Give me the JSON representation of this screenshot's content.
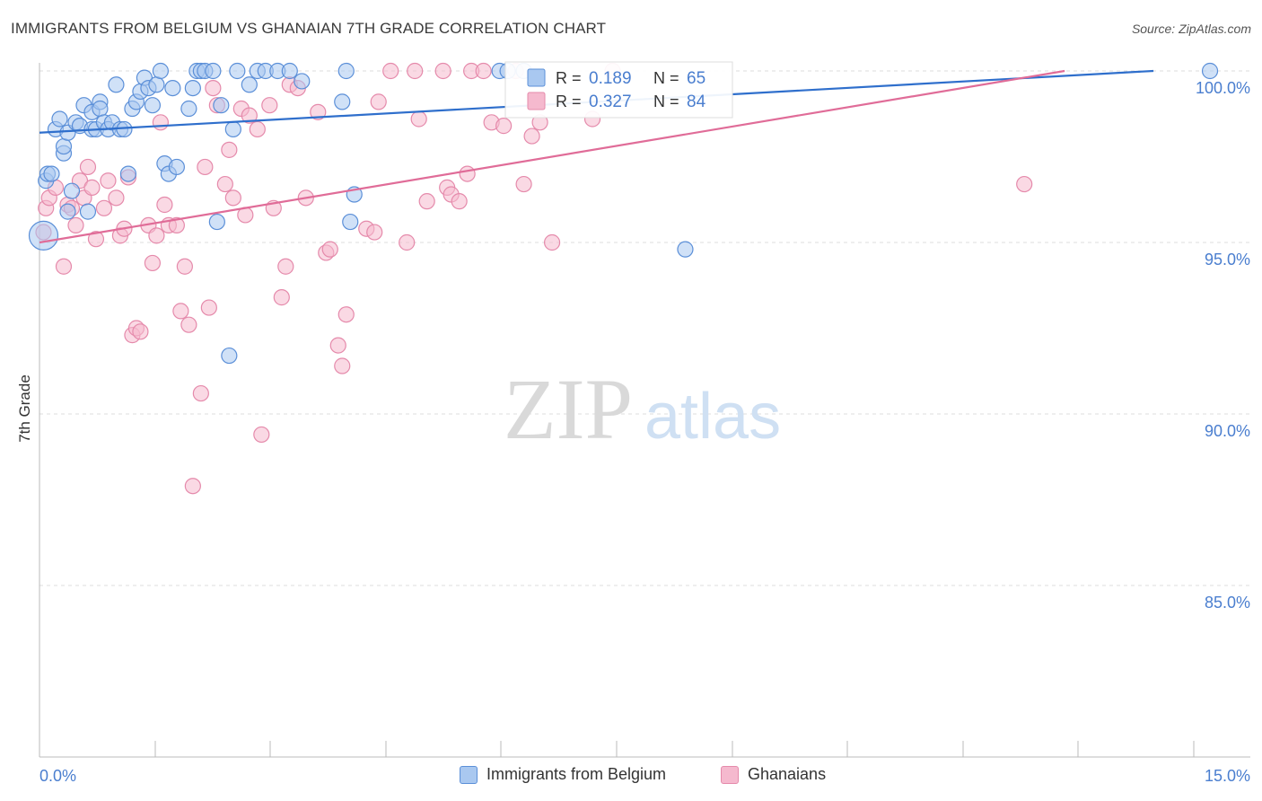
{
  "title": "IMMIGRANTS FROM BELGIUM VS GHANAIAN 7TH GRADE CORRELATION CHART",
  "source": "Source: ZipAtlas.com",
  "watermark": {
    "zip": "ZIP",
    "atlas": "atlas"
  },
  "colors": {
    "blue_fill": "#a9c8f0",
    "blue_stroke": "#5b8fd8",
    "blue_line": "#2f6fcc",
    "pink_fill": "#f5b9ce",
    "pink_stroke": "#e58aab",
    "pink_line": "#e06c98",
    "axis_label": "#4a7ecf",
    "grid": "#dddddd"
  },
  "chart_data": {
    "type": "scatter",
    "title": "IMMIGRANTS FROM BELGIUM VS GHANAIAN 7TH GRADE CORRELATION CHART",
    "xlabel": "",
    "ylabel": "7th Grade",
    "xlim": [
      0,
      15
    ],
    "ylim": [
      80.5,
      100.3
    ],
    "x_tick_labels": [
      {
        "value": 0,
        "label": "0.0%"
      },
      {
        "value": 15,
        "label": "15.0%"
      }
    ],
    "y_ticks": [
      {
        "value": 100,
        "label": "100.0%"
      },
      {
        "value": 95,
        "label": "95.0%"
      },
      {
        "value": 90,
        "label": "90.0%"
      },
      {
        "value": 85,
        "label": "85.0%"
      }
    ],
    "legend_box": {
      "rows": [
        {
          "r_label": "R = ",
          "r_value": "0.189",
          "n_label": "N = ",
          "n_value": "65",
          "series": "blue"
        },
        {
          "r_label": "R = ",
          "r_value": "0.327",
          "n_label": "N = ",
          "n_value": "84",
          "series": "pink"
        }
      ]
    },
    "series": [
      {
        "name": "Immigrants from Belgium",
        "color": "blue",
        "trend": {
          "x0": 0,
          "y0": 98.2,
          "x1": 13.8,
          "y1": 100.0
        },
        "points": [
          [
            0.05,
            95.2
          ],
          [
            0.08,
            96.8
          ],
          [
            0.1,
            97.0
          ],
          [
            0.15,
            97.0
          ],
          [
            0.2,
            98.3
          ],
          [
            0.25,
            98.6
          ],
          [
            0.3,
            97.6
          ],
          [
            0.3,
            97.8
          ],
          [
            0.35,
            98.2
          ],
          [
            0.35,
            95.9
          ],
          [
            0.4,
            96.5
          ],
          [
            0.45,
            98.5
          ],
          [
            0.5,
            98.4
          ],
          [
            0.55,
            99.0
          ],
          [
            0.6,
            95.9
          ],
          [
            0.65,
            98.3
          ],
          [
            0.65,
            98.8
          ],
          [
            0.7,
            98.3
          ],
          [
            0.75,
            99.1
          ],
          [
            0.75,
            98.9
          ],
          [
            0.8,
            98.5
          ],
          [
            0.85,
            98.3
          ],
          [
            0.9,
            98.5
          ],
          [
            0.95,
            99.6
          ],
          [
            1.0,
            98.3
          ],
          [
            1.05,
            98.3
          ],
          [
            1.1,
            97.0
          ],
          [
            1.15,
            98.9
          ],
          [
            1.2,
            99.1
          ],
          [
            1.25,
            99.4
          ],
          [
            1.3,
            99.8
          ],
          [
            1.35,
            99.5
          ],
          [
            1.4,
            99.0
          ],
          [
            1.45,
            99.6
          ],
          [
            1.5,
            100.0
          ],
          [
            1.55,
            97.3
          ],
          [
            1.6,
            97.0
          ],
          [
            1.65,
            99.5
          ],
          [
            1.7,
            97.2
          ],
          [
            1.85,
            98.9
          ],
          [
            1.9,
            99.5
          ],
          [
            1.95,
            100.0
          ],
          [
            2.0,
            100.0
          ],
          [
            2.05,
            100.0
          ],
          [
            2.15,
            100.0
          ],
          [
            2.2,
            95.6
          ],
          [
            2.25,
            99.0
          ],
          [
            2.35,
            91.7
          ],
          [
            2.4,
            98.3
          ],
          [
            2.45,
            100.0
          ],
          [
            2.6,
            99.6
          ],
          [
            2.7,
            100.0
          ],
          [
            2.8,
            100.0
          ],
          [
            2.95,
            100.0
          ],
          [
            3.1,
            100.0
          ],
          [
            3.25,
            99.7
          ],
          [
            3.75,
            99.1
          ],
          [
            3.8,
            100.0
          ],
          [
            3.9,
            96.4
          ],
          [
            3.85,
            95.6
          ],
          [
            5.7,
            100.0
          ],
          [
            5.8,
            100.0
          ],
          [
            6.0,
            100.0
          ],
          [
            8.0,
            94.8
          ],
          [
            14.5,
            100.0
          ]
        ]
      },
      {
        "name": "Ghanaians",
        "color": "pink",
        "trend": {
          "x0": 0,
          "y0": 95.0,
          "x1": 12.7,
          "y1": 100.0
        },
        "points": [
          [
            0.05,
            95.3
          ],
          [
            0.08,
            96.0
          ],
          [
            0.12,
            96.3
          ],
          [
            0.2,
            96.6
          ],
          [
            0.3,
            94.3
          ],
          [
            0.35,
            96.1
          ],
          [
            0.4,
            96.0
          ],
          [
            0.45,
            95.5
          ],
          [
            0.5,
            96.8
          ],
          [
            0.55,
            96.3
          ],
          [
            0.6,
            97.2
          ],
          [
            0.65,
            96.6
          ],
          [
            0.7,
            95.1
          ],
          [
            0.8,
            96.0
          ],
          [
            0.85,
            96.8
          ],
          [
            0.95,
            96.3
          ],
          [
            1.0,
            95.2
          ],
          [
            1.05,
            95.4
          ],
          [
            1.1,
            96.9
          ],
          [
            1.15,
            92.3
          ],
          [
            1.2,
            92.5
          ],
          [
            1.25,
            92.4
          ],
          [
            1.35,
            95.5
          ],
          [
            1.4,
            94.4
          ],
          [
            1.45,
            95.2
          ],
          [
            1.5,
            98.5
          ],
          [
            1.55,
            96.1
          ],
          [
            1.6,
            95.5
          ],
          [
            1.7,
            95.5
          ],
          [
            1.75,
            93.0
          ],
          [
            1.8,
            94.3
          ],
          [
            1.85,
            92.6
          ],
          [
            1.9,
            87.9
          ],
          [
            2.0,
            90.6
          ],
          [
            2.05,
            97.2
          ],
          [
            2.1,
            93.1
          ],
          [
            2.15,
            99.5
          ],
          [
            2.2,
            99.0
          ],
          [
            2.3,
            96.7
          ],
          [
            2.35,
            97.7
          ],
          [
            2.4,
            96.3
          ],
          [
            2.5,
            98.9
          ],
          [
            2.55,
            95.8
          ],
          [
            2.6,
            98.7
          ],
          [
            2.7,
            98.3
          ],
          [
            2.75,
            89.4
          ],
          [
            2.85,
            99.0
          ],
          [
            2.9,
            96.0
          ],
          [
            3.0,
            93.4
          ],
          [
            3.05,
            94.3
          ],
          [
            3.1,
            99.6
          ],
          [
            3.2,
            99.5
          ],
          [
            3.3,
            96.3
          ],
          [
            3.45,
            98.8
          ],
          [
            3.55,
            94.7
          ],
          [
            3.6,
            94.8
          ],
          [
            3.7,
            92.0
          ],
          [
            3.75,
            91.4
          ],
          [
            3.8,
            92.9
          ],
          [
            4.05,
            95.4
          ],
          [
            4.15,
            95.3
          ],
          [
            4.2,
            99.1
          ],
          [
            4.35,
            100.0
          ],
          [
            4.55,
            95.0
          ],
          [
            4.65,
            100.0
          ],
          [
            4.7,
            98.6
          ],
          [
            4.8,
            96.2
          ],
          [
            5.0,
            100.0
          ],
          [
            5.05,
            96.6
          ],
          [
            5.1,
            96.4
          ],
          [
            5.2,
            96.2
          ],
          [
            5.3,
            97.0
          ],
          [
            5.35,
            100.0
          ],
          [
            5.5,
            100.0
          ],
          [
            5.6,
            98.5
          ],
          [
            5.75,
            98.4
          ],
          [
            5.9,
            100.0
          ],
          [
            6.0,
            96.7
          ],
          [
            6.1,
            98.1
          ],
          [
            6.2,
            98.5
          ],
          [
            6.35,
            95.0
          ],
          [
            6.85,
            98.6
          ],
          [
            7.1,
            100.0
          ],
          [
            12.2,
            96.7
          ]
        ]
      }
    ]
  }
}
